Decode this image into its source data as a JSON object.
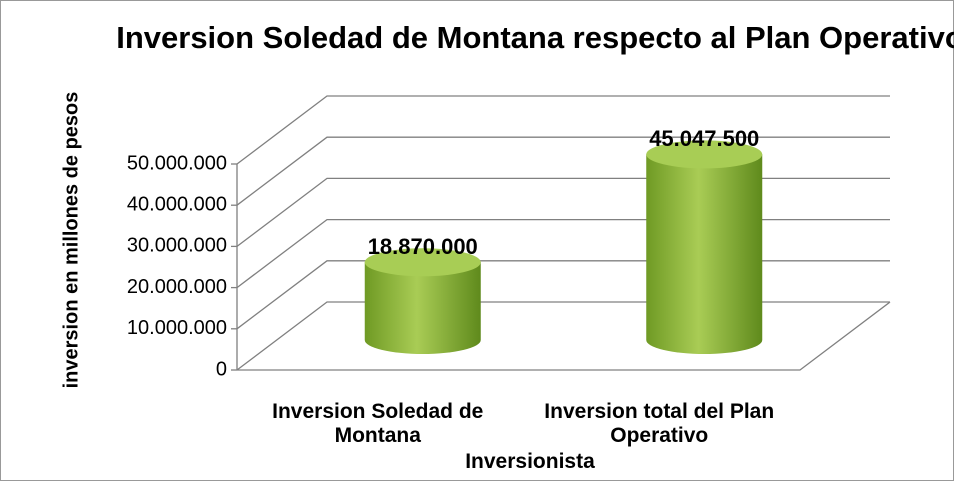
{
  "chart_data": {
    "type": "bar3d",
    "title": "Inversion Soledad de Montana respecto al Plan Operativo",
    "x_label": "Inversionista",
    "y_label": "inversion en millones de pesos",
    "categories": [
      "Inversion Soledad de Montana",
      "Inversion total del Plan Operativo"
    ],
    "values": [
      18870000,
      45047500
    ],
    "value_labels": [
      "18.870.000",
      "45.047.500"
    ],
    "color": "#8fb63a",
    "ylim": [
      0,
      50000000
    ],
    "yticks": [
      0,
      {
        "value": 10000000,
        "label": "10.000.000"
      },
      {
        "value": 20000000,
        "label": "20.000.000"
      },
      {
        "value": 30000000,
        "label": "30.000.000"
      },
      {
        "value": 40000000,
        "label": "40.000.000"
      },
      {
        "value": 50000000,
        "label": "50.000.000"
      }
    ],
    "grid": true
  }
}
